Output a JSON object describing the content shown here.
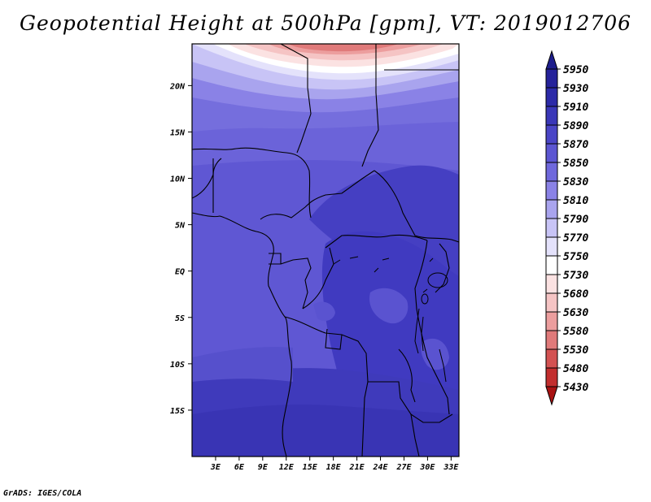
{
  "title": "Geopotential Height at 500hPa [gpm], VT: 2019012706",
  "footer": "GrADS: IGES/COLA",
  "map": {
    "variable": "Geopotential Height at 500hPa",
    "units": "gpm",
    "valid_time": "2019012706",
    "lon_range": [
      0,
      34
    ],
    "lat_range": [
      -20,
      24.5
    ],
    "lon_ticks": [
      "3E",
      "6E",
      "9E",
      "12E",
      "15E",
      "18E",
      "21E",
      "24E",
      "27E",
      "30E",
      "33E"
    ],
    "lon_tick_values": [
      3,
      6,
      9,
      12,
      15,
      18,
      21,
      24,
      27,
      30,
      33
    ],
    "lat_ticks": [
      "20N",
      "15N",
      "10N",
      "5N",
      "EQ",
      "5S",
      "10S",
      "15S"
    ],
    "lat_tick_values": [
      20,
      15,
      10,
      5,
      0,
      -5,
      -10,
      -15
    ]
  },
  "colorbar": {
    "levels": [
      "5950",
      "5930",
      "5910",
      "5890",
      "5870",
      "5850",
      "5830",
      "5810",
      "5790",
      "5770",
      "5750",
      "5730",
      "5680",
      "5630",
      "5580",
      "5530",
      "5480",
      "5430"
    ],
    "colors": [
      "#1e1e8c",
      "#25229a",
      "#2c2aa8",
      "#3a37b8",
      "#4a45c6",
      "#5c56d2",
      "#6f68dc",
      "#8a82e6",
      "#a9a4ee",
      "#c8c4f6",
      "#e4e2fb",
      "#ffffff",
      "#fbe2e2",
      "#f5c4c4",
      "#ec9e9e",
      "#e07a7a",
      "#d35252",
      "#c22e2e",
      "#a81212"
    ]
  },
  "colors": {
    "land_line": "#000000",
    "background": "#ffffff"
  }
}
